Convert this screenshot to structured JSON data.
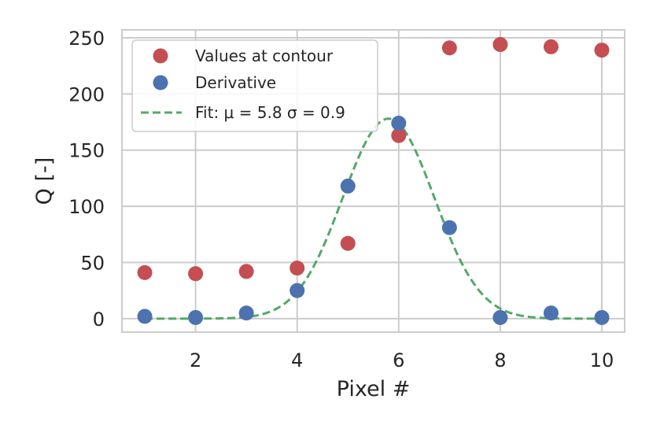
{
  "chart_data": {
    "type": "scatter",
    "xlabel": "Pixel #",
    "ylabel": "Q [-]",
    "xlim": [
      0.55,
      10.45
    ],
    "ylim": [
      -12,
      257
    ],
    "xticks": [
      2,
      4,
      6,
      8,
      10
    ],
    "yticks": [
      0,
      50,
      100,
      150,
      200,
      250
    ],
    "grid": true,
    "legend_position": "top-left",
    "series": [
      {
        "name": "Values at contour",
        "kind": "scatter",
        "color": "#c44e52",
        "x": [
          1,
          2,
          3,
          4,
          5,
          6,
          7,
          8,
          9,
          10
        ],
        "y": [
          41,
          40,
          42,
          45,
          67,
          163,
          241,
          244,
          242,
          239
        ]
      },
      {
        "name": "Derivative",
        "kind": "scatter",
        "color": "#4c72b0",
        "x": [
          1,
          2,
          3,
          4,
          5,
          6,
          7,
          8,
          9,
          10
        ],
        "y": [
          2,
          1,
          5,
          25,
          118,
          174,
          81,
          1,
          5,
          1
        ]
      },
      {
        "name": "Fit: μ = 5.8 σ = 0.9",
        "kind": "line",
        "style": "dashed",
        "color": "#55a868",
        "fit": {
          "function": "gaussian",
          "mu": 5.8,
          "sigma": 0.9,
          "amplitude": 178,
          "x_start": 1,
          "x_end": 10
        }
      }
    ]
  }
}
